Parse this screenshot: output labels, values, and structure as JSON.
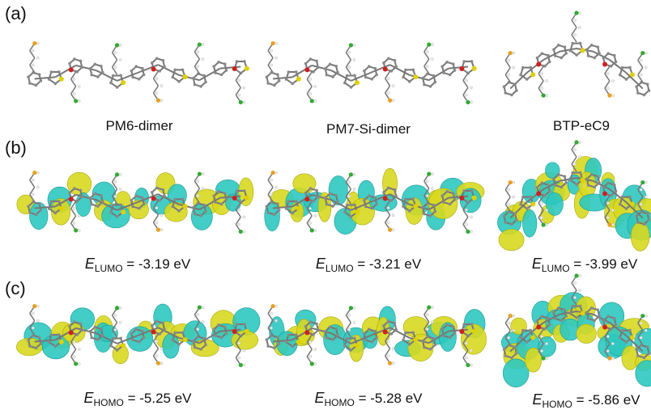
{
  "panels": [
    {
      "label": "(a)",
      "captions": [
        "PM6-dimer",
        "PM7-Si-dimer",
        "BTP-eC9"
      ]
    },
    {
      "label": "(b)",
      "captions": [
        {
          "symbol": "E",
          "subscript": "LUMO",
          "text": " = -3.19 eV"
        },
        {
          "symbol": "E",
          "subscript": "LUMO",
          "text": " = -3.21 eV"
        },
        {
          "symbol": "E",
          "subscript": "LUMO",
          "text": " = -3.99 eV"
        }
      ]
    },
    {
      "label": "(c)",
      "captions": [
        {
          "symbol": "E",
          "subscript": "HOMO",
          "text": " = -5.25 eV"
        },
        {
          "symbol": "E",
          "subscript": "HOMO",
          "text": " = -5.28 eV"
        },
        {
          "symbol": "E",
          "subscript": "HOMO",
          "text": " = -5.86 eV"
        }
      ]
    }
  ]
}
